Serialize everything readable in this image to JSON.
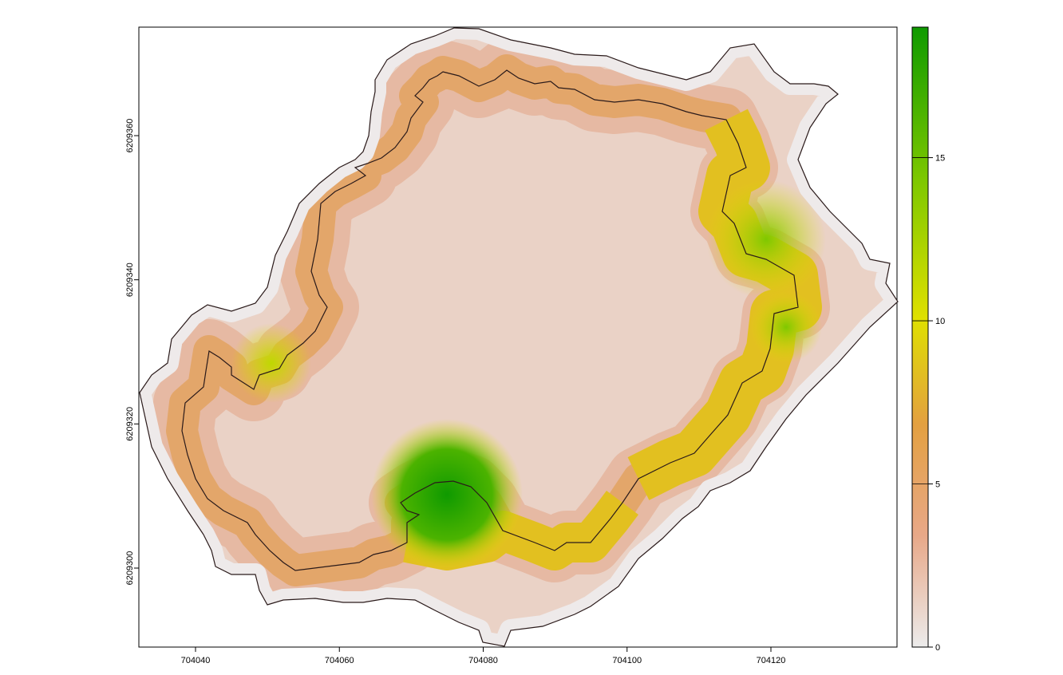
{
  "map": {
    "x_axis": {
      "ticks": [
        "704040",
        "704060",
        "704080",
        "704100",
        "704120"
      ],
      "tick_values": [
        704040,
        704060,
        704080,
        704100,
        704120
      ],
      "range": [
        704032,
        704137
      ]
    },
    "y_axis": {
      "ticks": [
        "6209300",
        "6209320",
        "6209340",
        "6209360"
      ],
      "tick_values": [
        6209300,
        6209320,
        6209340,
        6209360
      ],
      "range": [
        6209285,
        6209375
      ]
    },
    "raster": {
      "description_values": "distance-to-inner-edge gradient within ring polygon",
      "min": 0,
      "max": 19
    }
  },
  "legend": {
    "ticks": [
      "0",
      "5",
      "10",
      "15"
    ],
    "tick_values": [
      0,
      5,
      10,
      15
    ],
    "range": [
      0,
      19
    ],
    "colors": [
      "#ececec",
      "#e8a888",
      "#e3a040",
      "#dfe000",
      "#7fc800",
      "#0f9a00"
    ]
  }
}
